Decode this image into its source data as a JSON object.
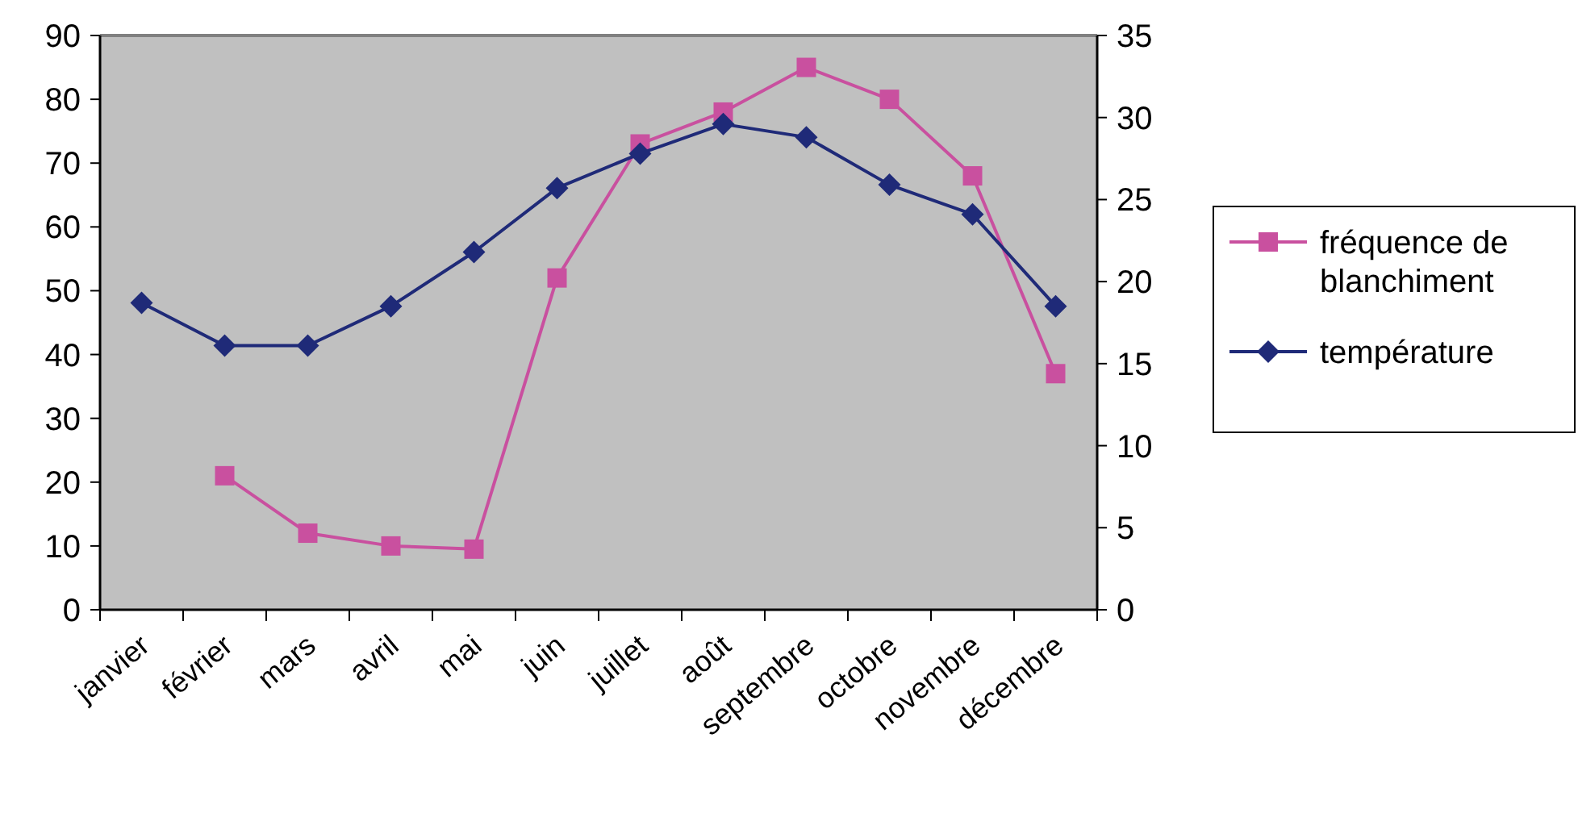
{
  "chart_data": {
    "type": "line",
    "categories": [
      "janvier",
      "février",
      "mars",
      "avril",
      "mai",
      "juin",
      "juillet",
      "août",
      "septembre",
      "octobre",
      "novembre",
      "décembre"
    ],
    "series": [
      {
        "name": "fréquence de blanchiment",
        "color": "#c9509f",
        "marker": "square",
        "values": [
          null,
          21,
          12,
          10,
          9.5,
          52,
          73,
          78,
          85,
          80,
          68,
          37
        ]
      },
      {
        "name": "température",
        "color": "#1f2a78",
        "marker": "diamond",
        "axis": "y2",
        "values": [
          18.7,
          16.1,
          16.1,
          18.5,
          21.8,
          25.7,
          27.8,
          29.6,
          28.8,
          25.9,
          24.1,
          18.5
        ]
      }
    ],
    "ylim": [
      0,
      90
    ],
    "yticks": [
      0,
      10,
      20,
      30,
      40,
      50,
      60,
      70,
      80,
      90
    ],
    "y2lim": [
      0,
      35
    ],
    "y2ticks": [
      0,
      5,
      10,
      15,
      20,
      25,
      30,
      35
    ],
    "legend": "right"
  }
}
